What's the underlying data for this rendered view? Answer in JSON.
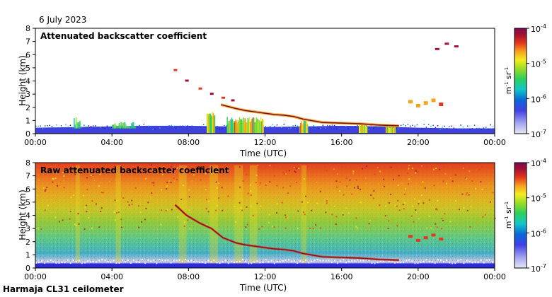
{
  "date_label": "6 July 2023",
  "footer_label": "Harmaja CL31 ceilometer",
  "colors": {
    "scale": [
      "#e6e6f5",
      "#a5a5f0",
      "#3f3fe6",
      "#1c1cd4",
      "#0a68d8",
      "#11c7c9",
      "#2ecf5a",
      "#9fdd25",
      "#f4ec1e",
      "#f5a21d",
      "#e5361e",
      "#a21030",
      "#7a0a55"
    ],
    "ground_band": "#2b2bd8",
    "layer": "#7a1520"
  },
  "chart_data": [
    {
      "type": "heatmap",
      "title": "Attenuated backscatter coefficient",
      "xlabel": "Time (UTC)",
      "ylabel": "Height (km)",
      "x_ticks": [
        "00:00",
        "04:00",
        "08:00",
        "12:00",
        "16:00",
        "20:00",
        "00:00"
      ],
      "x_range_hours": [
        0,
        24
      ],
      "y_ticks": [
        "0",
        "1",
        "2",
        "3",
        "4",
        "5",
        "6",
        "7",
        "8"
      ],
      "y_range_km": [
        0,
        8
      ],
      "colorbar": {
        "unit_base": "m",
        "unit_exp1": "-1",
        "unit_mid": "sr",
        "unit_exp2": "-1",
        "ticks": [
          {
            "base": "10",
            "exp": "-4",
            "value": 0.0001
          },
          {
            "base": "10",
            "exp": "-5",
            "value": 1e-05
          },
          {
            "base": "10",
            "exp": "-6",
            "value": 1e-06
          },
          {
            "base": "10",
            "exp": "-7",
            "value": 1e-07
          }
        ],
        "range": [
          1e-07,
          0.0001
        ]
      },
      "boundary_layer_top_km": [
        [
          0,
          0.45
        ],
        [
          2,
          0.5
        ],
        [
          4,
          0.55
        ],
        [
          6,
          0.6
        ],
        [
          8,
          0.6
        ],
        [
          10,
          0.55
        ],
        [
          12,
          0.5
        ],
        [
          14,
          0.55
        ],
        [
          16,
          0.6
        ],
        [
          18,
          0.55
        ],
        [
          20,
          0.45
        ],
        [
          22,
          0.4
        ],
        [
          24,
          0.4
        ]
      ],
      "cloud_layer_km": [
        [
          9.7,
          2.2
        ],
        [
          10.5,
          1.9
        ],
        [
          11.0,
          1.75
        ],
        [
          11.5,
          1.65
        ],
        [
          12.0,
          1.55
        ],
        [
          12.5,
          1.45
        ],
        [
          13.0,
          1.4
        ],
        [
          13.5,
          1.3
        ],
        [
          14.0,
          1.1
        ],
        [
          15.0,
          0.85
        ],
        [
          16.0,
          0.8
        ],
        [
          17.0,
          0.75
        ],
        [
          18.0,
          0.65
        ],
        [
          19.0,
          0.6
        ]
      ],
      "high_cloud_km": [
        [
          7.3,
          4.8
        ],
        [
          7.9,
          4.0
        ],
        [
          8.6,
          3.4
        ],
        [
          9.2,
          3.0
        ],
        [
          9.8,
          2.7
        ],
        [
          10.3,
          2.5
        ]
      ],
      "convective_columns": [
        {
          "t_start": 8.95,
          "t_end": 9.35,
          "top_km": 1.7
        },
        {
          "t_start": 10.0,
          "t_end": 11.9,
          "top_km": 1.3
        },
        {
          "t_start": 13.8,
          "t_end": 14.2,
          "top_km": 1.0
        },
        {
          "t_start": 16.9,
          "t_end": 17.3,
          "top_km": 0.8
        },
        {
          "t_start": 18.3,
          "t_end": 18.8,
          "top_km": 0.7
        }
      ],
      "aerosol_plumes": [
        {
          "t_start": 2.0,
          "t_end": 2.3,
          "top_km": 1.3
        },
        {
          "t_start": 4.0,
          "t_end": 5.2,
          "top_km": 0.9
        }
      ],
      "evening_cloud_km": [
        [
          19.6,
          2.4
        ],
        [
          20.0,
          2.1
        ],
        [
          20.4,
          2.3
        ],
        [
          20.8,
          2.5
        ],
        [
          21.2,
          2.2
        ]
      ],
      "upper_cloud_km": [
        [
          21.0,
          6.4
        ],
        [
          21.5,
          6.8
        ],
        [
          22.0,
          6.6
        ]
      ]
    },
    {
      "type": "heatmap",
      "title": "Raw attenuated backscatter coefficient",
      "xlabel": "Time (UTC)",
      "ylabel": "Height (km)",
      "x_ticks": [
        "00:00",
        "04:00",
        "08:00",
        "12:00",
        "16:00",
        "20:00",
        "00:00"
      ],
      "x_range_hours": [
        0,
        24
      ],
      "y_ticks": [
        "0",
        "1",
        "2",
        "3",
        "4",
        "5",
        "6",
        "7",
        "8"
      ],
      "y_range_km": [
        0,
        8
      ],
      "colorbar": {
        "unit_base": "m",
        "unit_exp1": "-1",
        "unit_mid": "sr",
        "unit_exp2": "-1",
        "ticks": [
          {
            "base": "10",
            "exp": "-4",
            "value": 0.0001
          },
          {
            "base": "10",
            "exp": "-5",
            "value": 1e-05
          },
          {
            "base": "10",
            "exp": "-6",
            "value": 1e-06
          },
          {
            "base": "10",
            "exp": "-7",
            "value": 1e-07
          }
        ],
        "range": [
          1e-07,
          0.0001
        ]
      },
      "cloud_layer_km": [
        [
          7.3,
          4.8
        ],
        [
          7.9,
          4.0
        ],
        [
          8.6,
          3.4
        ],
        [
          9.2,
          3.0
        ],
        [
          9.8,
          2.3
        ],
        [
          10.5,
          1.9
        ],
        [
          11.0,
          1.75
        ],
        [
          11.5,
          1.65
        ],
        [
          12.0,
          1.55
        ],
        [
          12.5,
          1.45
        ],
        [
          13.0,
          1.4
        ],
        [
          13.5,
          1.3
        ],
        [
          14.0,
          1.1
        ],
        [
          15.0,
          0.85
        ],
        [
          16.0,
          0.8
        ],
        [
          17.0,
          0.75
        ],
        [
          18.0,
          0.65
        ],
        [
          19.0,
          0.6
        ]
      ],
      "evening_cloud_km": [
        [
          19.6,
          2.4
        ],
        [
          20.0,
          2.1
        ],
        [
          20.4,
          2.3
        ],
        [
          20.8,
          2.5
        ],
        [
          21.2,
          2.2
        ]
      ]
    }
  ]
}
